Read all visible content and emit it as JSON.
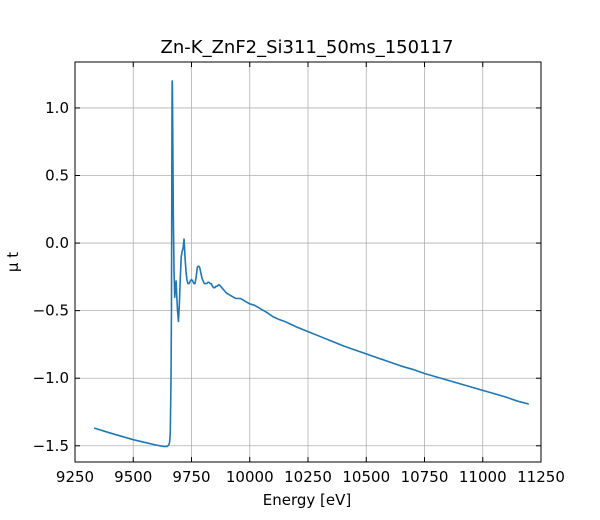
{
  "chart_data": {
    "type": "line",
    "title": "Zn-K_ZnF2_Si311_50ms_150117",
    "xlabel": "Energy [eV]",
    "ylabel": "μ t",
    "xlim": [
      9250,
      11250
    ],
    "ylim": [
      -1.62,
      1.34
    ],
    "xticks": [
      9250,
      9500,
      9750,
      10000,
      10250,
      10500,
      10750,
      11000,
      11250
    ],
    "yticks": [
      -1.5,
      -1.0,
      -0.5,
      0.0,
      0.5,
      1.0
    ],
    "xtick_labels": [
      "9250",
      "9500",
      "9750",
      "10000",
      "10250",
      "10500",
      "10750",
      "11000",
      "11250"
    ],
    "ytick_labels": [
      "−1.5",
      "−1.0",
      "−0.5",
      "0.0",
      "0.5",
      "1.0"
    ],
    "grid": true,
    "series_color": "#1f77b4",
    "series": [
      {
        "x": [
          9335,
          9400,
          9450,
          9500,
          9550,
          9600,
          9630,
          9645,
          9652,
          9656,
          9659,
          9662,
          9664,
          9665,
          9666,
          9667,
          9668,
          9669,
          9670,
          9672,
          9675,
          9678,
          9681,
          9684,
          9687,
          9690,
          9694,
          9698,
          9702,
          9706,
          9710,
          9714,
          9718,
          9722,
          9726,
          9730,
          9735,
          9740,
          9745,
          9750,
          9755,
          9760,
          9765,
          9770,
          9775,
          9780,
          9785,
          9790,
          9795,
          9800,
          9805,
          9810,
          9815,
          9820,
          9825,
          9830,
          9835,
          9840,
          9845,
          9850,
          9855,
          9860,
          9865,
          9870,
          9875,
          9880,
          9885,
          9890,
          9895,
          9900,
          9910,
          9920,
          9930,
          9940,
          9950,
          9960,
          9970,
          9980,
          9990,
          10000,
          10010,
          10020,
          10030,
          10040,
          10050,
          10075,
          10100,
          10125,
          10150,
          10175,
          10200,
          10250,
          10300,
          10350,
          10400,
          10450,
          10500,
          10550,
          10600,
          10650,
          10700,
          10750,
          10800,
          10850,
          10900,
          10950,
          11000,
          11050,
          11100,
          11150,
          11195
        ],
        "y": [
          -1.37,
          -1.405,
          -1.43,
          -1.455,
          -1.475,
          -1.495,
          -1.505,
          -1.505,
          -1.495,
          -1.475,
          -1.4,
          -1.0,
          -0.5,
          0.1,
          0.8,
          1.2,
          1.18,
          0.95,
          0.7,
          0.2,
          -0.2,
          -0.4,
          -0.33,
          -0.28,
          -0.4,
          -0.5,
          -0.58,
          -0.45,
          -0.25,
          -0.1,
          -0.06,
          -0.04,
          0.03,
          -0.1,
          -0.2,
          -0.27,
          -0.3,
          -0.3,
          -0.28,
          -0.27,
          -0.28,
          -0.3,
          -0.3,
          -0.25,
          -0.18,
          -0.17,
          -0.18,
          -0.22,
          -0.26,
          -0.28,
          -0.3,
          -0.3,
          -0.3,
          -0.29,
          -0.29,
          -0.3,
          -0.3,
          -0.32,
          -0.33,
          -0.33,
          -0.32,
          -0.32,
          -0.31,
          -0.31,
          -0.32,
          -0.33,
          -0.34,
          -0.35,
          -0.36,
          -0.37,
          -0.38,
          -0.39,
          -0.4,
          -0.41,
          -0.41,
          -0.41,
          -0.42,
          -0.43,
          -0.44,
          -0.45,
          -0.455,
          -0.46,
          -0.47,
          -0.48,
          -0.49,
          -0.515,
          -0.545,
          -0.565,
          -0.58,
          -0.6,
          -0.62,
          -0.655,
          -0.69,
          -0.725,
          -0.76,
          -0.79,
          -0.82,
          -0.85,
          -0.88,
          -0.91,
          -0.935,
          -0.965,
          -0.99,
          -1.015,
          -1.04,
          -1.065,
          -1.09,
          -1.115,
          -1.14,
          -1.17,
          -1.19
        ]
      }
    ]
  }
}
